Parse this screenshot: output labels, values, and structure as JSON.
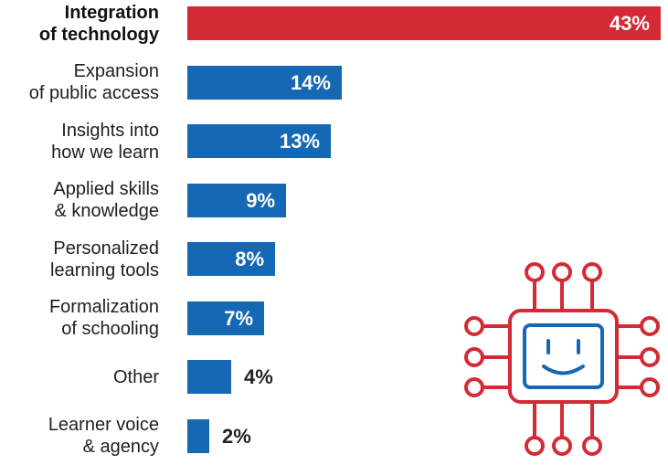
{
  "chart_data": {
    "type": "bar",
    "orientation": "horizontal",
    "categories": [
      "Integration\nof technology",
      "Expansion\nof public access",
      "Insights into\nhow we learn",
      "Applied skills\n& knowledge",
      "Personalized\nlearning tools",
      "Formalization\nof schooling",
      "Other",
      "Learner voice\n& agency"
    ],
    "values": [
      43,
      14,
      13,
      9,
      8,
      7,
      4,
      2
    ],
    "value_labels": [
      "43%",
      "14%",
      "13%",
      "9%",
      "8%",
      "7%",
      "4%",
      "2%"
    ],
    "highlight_index": 0,
    "xlim": [
      0,
      43
    ],
    "grid": false,
    "legend": "none"
  },
  "colors": {
    "highlight": "#d42a35",
    "bar": "#1568b3",
    "icon_outer": "#d42a35",
    "icon_inner": "#1568b3"
  },
  "icon": "ai-chip-smiley-icon"
}
